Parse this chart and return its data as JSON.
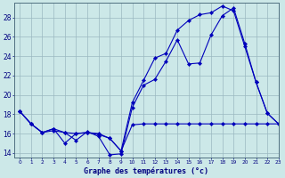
{
  "title": "Graphe des températures (°c)",
  "background_color": "#cce8e8",
  "grid_color": "#9ab8c0",
  "line_color": "#0000bb",
  "xlim": [
    -0.5,
    23
  ],
  "ylim": [
    13.5,
    29.5
  ],
  "xticks": [
    0,
    1,
    2,
    3,
    4,
    5,
    6,
    7,
    8,
    9,
    10,
    11,
    12,
    13,
    14,
    15,
    16,
    17,
    18,
    19,
    20,
    21,
    22,
    23
  ],
  "yticks": [
    14,
    16,
    18,
    20,
    22,
    24,
    26,
    28
  ],
  "line1_x": [
    0,
    1,
    2,
    3,
    4,
    5,
    6,
    7,
    8,
    9,
    10,
    11,
    12,
    13,
    14,
    15,
    16,
    17,
    18,
    19,
    20,
    21,
    22,
    23
  ],
  "line1_y": [
    18.3,
    17.0,
    16.1,
    16.3,
    16.1,
    15.3,
    16.2,
    15.7,
    13.8,
    13.9,
    18.7,
    21.0,
    21.6,
    23.5,
    25.7,
    23.2,
    23.3,
    26.2,
    28.2,
    29.0,
    25.3,
    21.3,
    18.1,
    17.0
  ],
  "line2_x": [
    0,
    1,
    2,
    3,
    4,
    5,
    6,
    7,
    8,
    9,
    10,
    11,
    12,
    13,
    14,
    15,
    16,
    17,
    18,
    19,
    20,
    21,
    22,
    23
  ],
  "line2_y": [
    18.3,
    17.0,
    16.1,
    16.5,
    15.0,
    16.0,
    16.1,
    15.9,
    15.5,
    14.2,
    19.2,
    21.5,
    23.8,
    24.3,
    26.7,
    27.7,
    28.3,
    28.5,
    29.2,
    28.7,
    25.0,
    21.3,
    18.1,
    17.0
  ],
  "line3_x": [
    0,
    1,
    2,
    3,
    4,
    5,
    6,
    7,
    8,
    9,
    10,
    11,
    12,
    13,
    14,
    15,
    16,
    17,
    18,
    19,
    20,
    21,
    22,
    23
  ],
  "line3_y": [
    18.3,
    17.0,
    16.1,
    16.5,
    16.1,
    16.0,
    16.1,
    16.0,
    15.5,
    14.2,
    16.9,
    17.0,
    17.0,
    17.0,
    17.0,
    17.0,
    17.0,
    17.0,
    17.0,
    17.0,
    17.0,
    17.0,
    17.0,
    17.0
  ]
}
